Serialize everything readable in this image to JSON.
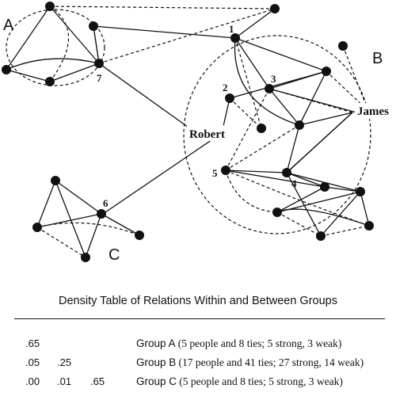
{
  "diagram": {
    "group_labels": {
      "a": "A",
      "b": "B",
      "c": "C"
    },
    "node_labels": {
      "n1": "1",
      "n2": "2",
      "n3": "3",
      "n4": "4",
      "n5": "5",
      "n6": "6",
      "n7": "7"
    },
    "person_labels": {
      "robert": "Robert",
      "james": "James"
    }
  },
  "density_table": {
    "title": "Density Table of Relations Within and Between Groups",
    "rows": [
      {
        "values": [
          ".65"
        ],
        "group": "Group A",
        "details": "(5 people and 8 ties; 5 strong, 3 weak)"
      },
      {
        "values": [
          ".05",
          ".25"
        ],
        "group": "Group B",
        "details": "(17 people and 41 ties; 27 strong, 14 weak)"
      },
      {
        "values": [
          ".00",
          ".01",
          ".65"
        ],
        "group": "Group C",
        "details": "(5 people and 8 ties; 5 strong, 3 weak)"
      }
    ]
  }
}
